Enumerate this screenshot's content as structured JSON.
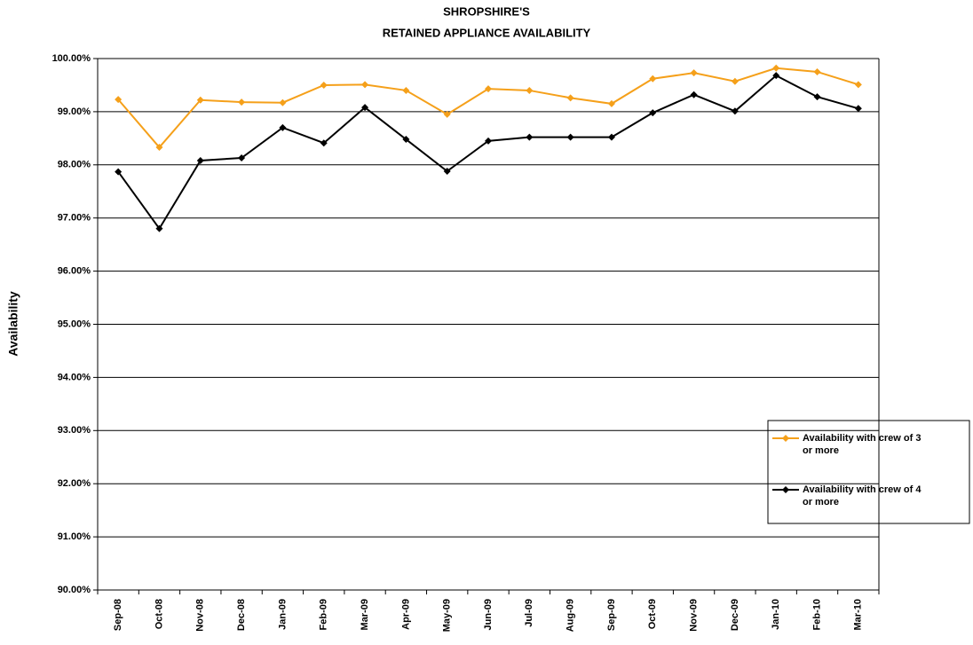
{
  "chart_data": {
    "type": "line",
    "title": [
      "SHROPSHIRE'S",
      "RETAINED APPLIANCE AVAILABILITY"
    ],
    "ylabel": "Availability",
    "categories": [
      "Sep-08",
      "Oct-08",
      "Nov-08",
      "Dec-08",
      "Jan-09",
      "Feb-09",
      "Mar-09",
      "Apr-09",
      "May-09",
      "Jun-09",
      "Jul-09",
      "Aug-09",
      "Sep-09",
      "Oct-09",
      "Nov-09",
      "Dec-09",
      "Jan-10",
      "Feb-10",
      "Mar-10"
    ],
    "series": [
      {
        "name": "Availability with crew of 3 or more",
        "color": "#f5a01a",
        "values": [
          99.23,
          98.33,
          99.22,
          99.18,
          99.17,
          99.5,
          99.51,
          99.4,
          98.95,
          99.43,
          99.4,
          99.26,
          99.15,
          99.62,
          99.73,
          99.57,
          99.82,
          99.75,
          99.51
        ]
      },
      {
        "name": "Availability with crew of 4 or more",
        "color": "#000000",
        "values": [
          97.87,
          96.8,
          98.08,
          98.13,
          98.7,
          98.41,
          99.08,
          98.48,
          97.88,
          98.45,
          98.52,
          98.52,
          98.52,
          98.98,
          99.32,
          99.01,
          99.68,
          99.28,
          99.06
        ]
      }
    ],
    "ylim": [
      90,
      100
    ],
    "yticks": [
      {
        "value": 90,
        "label": "90.00%"
      },
      {
        "value": 91,
        "label": "91.00%"
      },
      {
        "value": 92,
        "label": "92.00%"
      },
      {
        "value": 93,
        "label": "93.00%"
      },
      {
        "value": 94,
        "label": "94.00%"
      },
      {
        "value": 95,
        "label": "95.00%"
      },
      {
        "value": 96,
        "label": "96.00%"
      },
      {
        "value": 97,
        "label": "97.00%"
      },
      {
        "value": 98,
        "label": "98.00%"
      },
      {
        "value": 99,
        "label": "99.00%"
      },
      {
        "value": 100,
        "label": "100.00%"
      }
    ],
    "grid": true,
    "legend": "right"
  }
}
